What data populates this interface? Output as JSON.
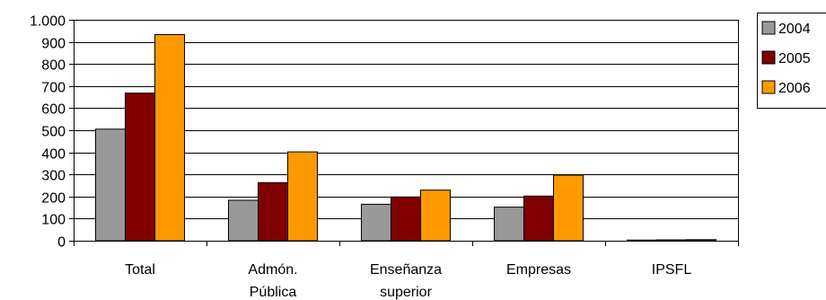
{
  "chart_data": {
    "type": "bar",
    "title": "",
    "xlabel": "",
    "ylabel": "",
    "categories": [
      [
        "Total"
      ],
      [
        "Admón.",
        "Pública"
      ],
      [
        "Enseñanza",
        "superior"
      ],
      [
        "Empresas"
      ],
      [
        "IPSFL"
      ]
    ],
    "series": [
      {
        "name": "2004",
        "color": "#999999",
        "values": [
          505,
          183,
          165,
          152,
          3
        ]
      },
      {
        "name": "2005",
        "color": "#800000",
        "values": [
          668,
          263,
          198,
          202,
          4
        ]
      },
      {
        "name": "2006",
        "color": "#ff9900",
        "values": [
          933,
          402,
          229,
          297,
          5
        ]
      }
    ],
    "ylim": [
      0,
      1000
    ],
    "yticks": [
      {
        "value": 0,
        "label": "0"
      },
      {
        "value": 100,
        "label": "100"
      },
      {
        "value": 200,
        "label": "200"
      },
      {
        "value": 300,
        "label": "300"
      },
      {
        "value": 400,
        "label": "400"
      },
      {
        "value": 500,
        "label": "500"
      },
      {
        "value": 600,
        "label": "600"
      },
      {
        "value": 700,
        "label": "700"
      },
      {
        "value": 800,
        "label": "800"
      },
      {
        "value": 900,
        "label": "900"
      },
      {
        "value": 1000,
        "label": "1.000"
      }
    ],
    "grid": true,
    "legend": "top-right"
  }
}
